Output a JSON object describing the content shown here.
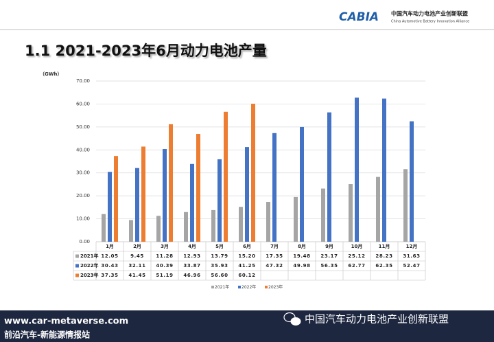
{
  "header": {
    "logo": "CABIA",
    "org_cn": "中国汽车动力电池产业创新联盟",
    "org_en": "China Automotive Battery Innovation Alliance"
  },
  "footer": {
    "website": "www.car-metaverse.com",
    "source": "前沿汽车-新能源情报站",
    "account": "中国汽车动力电池产业创新联盟"
  },
  "chart_data": {
    "type": "bar",
    "title": "1.1 2021-2023年6月动力电池产量",
    "y_label": "（GWh）",
    "categories": [
      "1月",
      "2月",
      "3月",
      "4月",
      "5月",
      "6月",
      "7月",
      "8月",
      "9月",
      "10月",
      "11月",
      "12月"
    ],
    "series": [
      {
        "name": "2021年",
        "color": "#a5a5a5",
        "values": [
          12.05,
          9.45,
          11.28,
          12.93,
          13.79,
          15.2,
          17.35,
          19.48,
          23.17,
          25.12,
          28.23,
          31.63
        ],
        "value_labels": [
          "12.05",
          "9.45",
          "11.28",
          "12.93",
          "13.79",
          "15.20",
          "17.35",
          "19.48",
          "23.17",
          "25.12",
          "28.23",
          "31.63"
        ]
      },
      {
        "name": "2022年",
        "color": "#4472c4",
        "values": [
          30.43,
          32.11,
          40.39,
          33.87,
          35.93,
          41.25,
          47.32,
          49.98,
          56.35,
          62.77,
          62.35,
          52.47
        ],
        "value_labels": [
          "30.43",
          "32.11",
          "40.39",
          "33.87",
          "35.93",
          "41.25",
          "47.32",
          "49.98",
          "56.35",
          "62.77",
          "62.35",
          "52.47"
        ]
      },
      {
        "name": "2023年",
        "color": "#ed7d31",
        "values": [
          37.35,
          41.45,
          51.19,
          46.96,
          56.6,
          60.12,
          null,
          null,
          null,
          null,
          null,
          null
        ],
        "value_labels": [
          "37.35",
          "41.45",
          "51.19",
          "46.96",
          "56.60",
          "60.12",
          null,
          null,
          null,
          null,
          null,
          null
        ]
      }
    ],
    "ylim": [
      0,
      70
    ],
    "yticks": [
      {
        "value": 0,
        "label": "0.00"
      },
      {
        "value": 10,
        "label": "10.00"
      },
      {
        "value": 20,
        "label": "20.00"
      },
      {
        "value": 30,
        "label": "30.00"
      },
      {
        "value": 40,
        "label": "40.00"
      },
      {
        "value": 50,
        "label": "50.00"
      },
      {
        "value": 60,
        "label": "60.00"
      },
      {
        "value": 70,
        "label": "70.00"
      }
    ],
    "grid": true,
    "legend": "bottom"
  }
}
